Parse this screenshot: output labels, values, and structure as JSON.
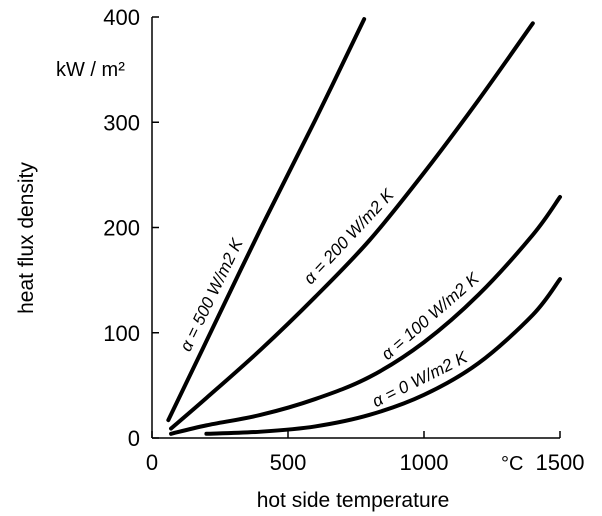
{
  "chart_data": {
    "type": "line",
    "title": "",
    "xlabel": "hot side temperature",
    "ylabel": "heat flux density",
    "x_unit": "°C",
    "y_unit": "kW / m²",
    "xlim": [
      0,
      1500
    ],
    "ylim": [
      0,
      400
    ],
    "x_ticks": [
      0,
      500,
      1000,
      1500
    ],
    "y_ticks": [
      0,
      100,
      200,
      300,
      400
    ],
    "grid": false,
    "legend": "none",
    "series": [
      {
        "name": "α = 500 W/m2 K",
        "x": [
          60,
          200,
          400,
          600,
          780
        ],
        "y": [
          17,
          92,
          199,
          302,
          398
        ]
      },
      {
        "name": "α = 200 W/m2 K",
        "x": [
          70,
          200,
          400,
          600,
          800,
          1000,
          1200,
          1400
        ],
        "y": [
          9,
          38,
          84,
          134,
          188,
          252,
          321,
          394
        ]
      },
      {
        "name": "α = 100 W/m2 K",
        "x": [
          70,
          200,
          400,
          600,
          800,
          1000,
          1200,
          1400,
          1500
        ],
        "y": [
          4,
          12,
          22,
          37,
          58,
          91,
          136,
          193,
          229
        ]
      },
      {
        "name": "α = 0 W/m2 K",
        "x": [
          200,
          400,
          600,
          800,
          1000,
          1200,
          1400,
          1500
        ],
        "y": [
          4,
          6,
          11,
          22,
          41,
          71,
          117,
          151
        ]
      }
    ]
  }
}
